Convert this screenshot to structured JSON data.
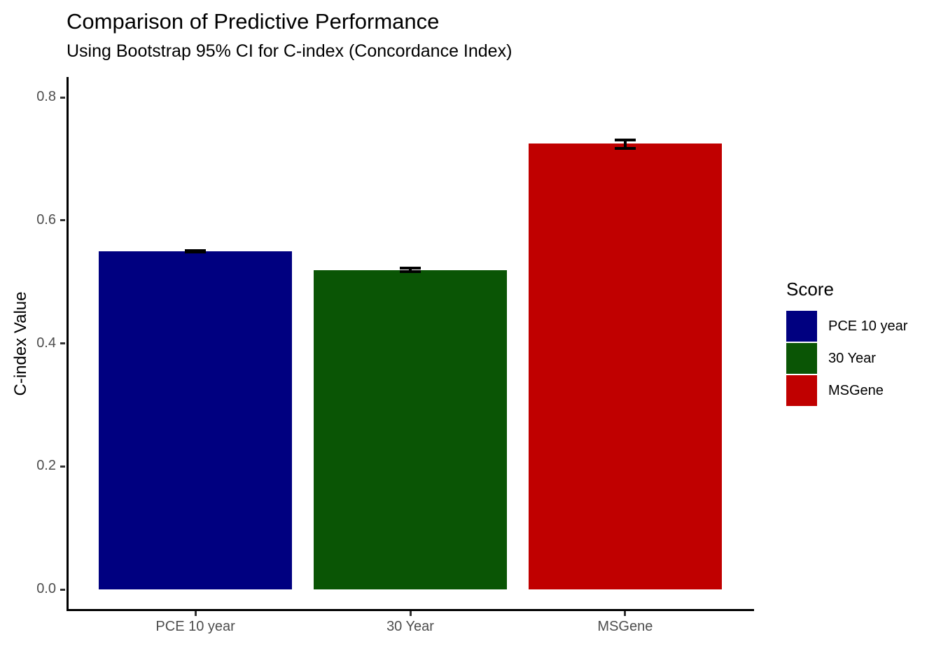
{
  "header": {
    "title": "Comparison of Predictive Performance",
    "subtitle": "Using Bootstrap 95% CI for C-index (Concordance Index)"
  },
  "chart_data": {
    "type": "bar",
    "title": "Comparison of Predictive Performance",
    "subtitle": "Using Bootstrap 95% CI for C-index (Concordance Index)",
    "xlabel": "",
    "ylabel": "C-index Value",
    "categories": [
      "PCE 10 year",
      "30 Year",
      "MSGene"
    ],
    "values": [
      0.55,
      0.519,
      0.725
    ],
    "error_bars": [
      {
        "lower": 0.548,
        "upper": 0.551
      },
      {
        "lower": 0.517,
        "upper": 0.522
      },
      {
        "lower": 0.717,
        "upper": 0.731
      }
    ],
    "bar_colors": [
      "#000080",
      "#0A5505",
      "#C00000"
    ],
    "ylim": [
      0.0,
      0.83
    ],
    "yticks": [
      0.0,
      0.2,
      0.4,
      0.6,
      0.8
    ],
    "ytick_labels": [
      "0.0",
      "0.2",
      "0.4",
      "0.6",
      "0.8"
    ],
    "grid": "off",
    "legend_position": "right"
  },
  "legend": {
    "title": "Score",
    "items": [
      {
        "label": "PCE 10 year",
        "color": "#000080"
      },
      {
        "label": "30 Year",
        "color": "#0A5505"
      },
      {
        "label": "MSGene",
        "color": "#C00000"
      }
    ]
  },
  "colors": {
    "background": "#FFFFFF",
    "axis_line": "#000000",
    "tick_mark": "#333333",
    "tick_label": "#4D4D4D",
    "error_bar": "#000000"
  }
}
